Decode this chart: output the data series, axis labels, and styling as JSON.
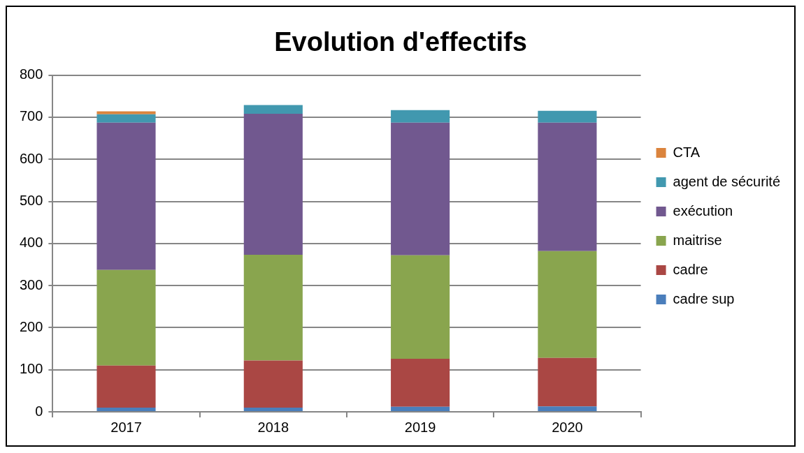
{
  "chart_data": {
    "type": "bar",
    "title": "Evolution d'effectifs",
    "categories": [
      "2017",
      "2018",
      "2019",
      "2020"
    ],
    "stacked": true,
    "ylim": [
      0,
      800
    ],
    "yticks": [
      0,
      100,
      200,
      300,
      400,
      500,
      600,
      700,
      800
    ],
    "grid": "y",
    "legend": "right",
    "series": [
      {
        "name": "cadre sup",
        "color": "#4a7ebb",
        "values": [
          10,
          10,
          12,
          13
        ]
      },
      {
        "name": "cadre",
        "color": "#aa4744",
        "values": [
          100,
          112,
          114,
          115
        ]
      },
      {
        "name": "maitrise",
        "color": "#89a54e",
        "values": [
          227,
          251,
          246,
          254
        ]
      },
      {
        "name": "exécution",
        "color": "#71588f",
        "values": [
          350,
          335,
          315,
          305
        ]
      },
      {
        "name": "agent de sécurité",
        "color": "#4198af",
        "values": [
          20,
          21,
          30,
          28
        ]
      },
      {
        "name": "CTA",
        "color": "#db843d",
        "values": [
          7,
          null,
          null,
          null
        ]
      }
    ]
  }
}
